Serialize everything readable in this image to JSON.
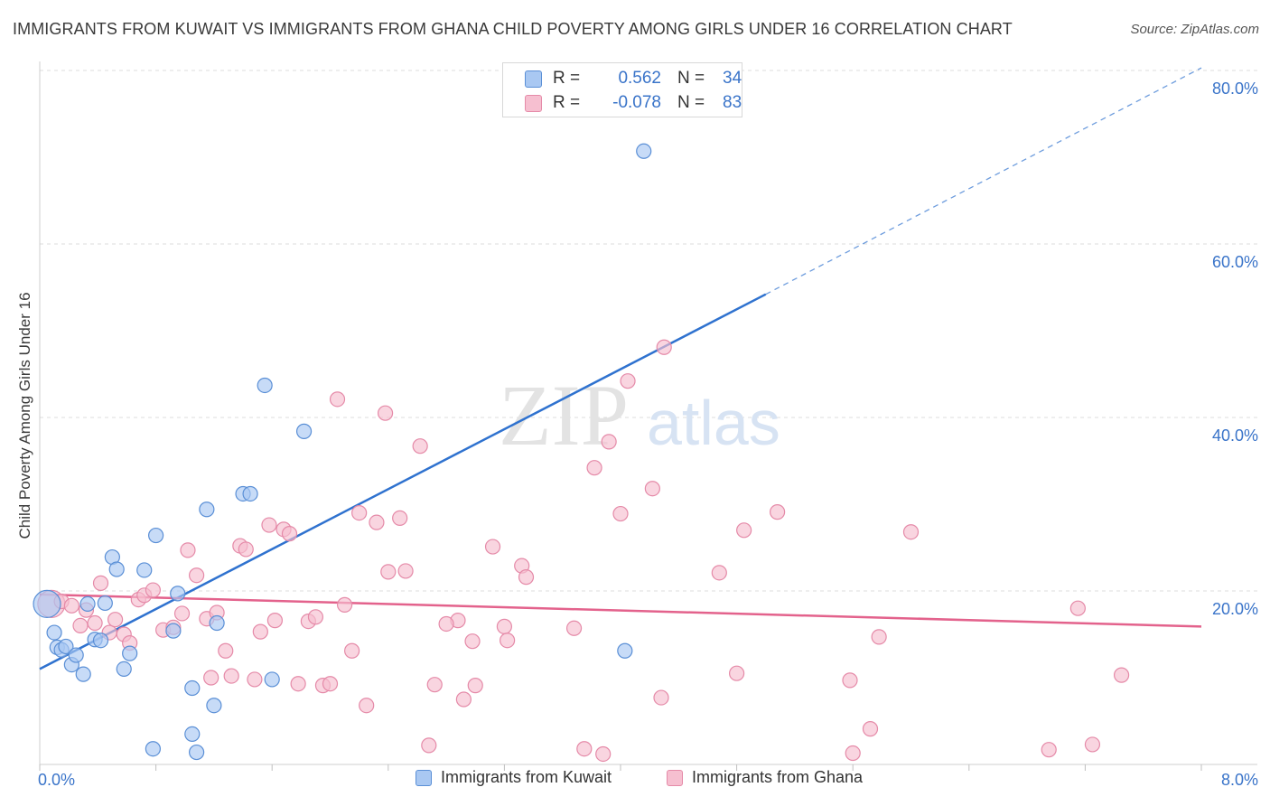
{
  "title": "IMMIGRANTS FROM KUWAIT VS IMMIGRANTS FROM GHANA CHILD POVERTY AMONG GIRLS UNDER 16 CORRELATION CHART",
  "source": "Source: ZipAtlas.com",
  "watermark": {
    "zip": "ZIP",
    "atlas": "atlas"
  },
  "legend": {
    "r_label": "R =",
    "n_label": "N =",
    "rows": [
      {
        "r": "0.562",
        "n": "34"
      },
      {
        "r": "-0.078",
        "n": "83"
      }
    ]
  },
  "colors": {
    "kuwait_fill": "#a9c8f2",
    "kuwait_stroke": "#5a8fd6",
    "kuwait_line": "#2f72cf",
    "ghana_fill": "#f6bfd0",
    "ghana_stroke": "#e58aa8",
    "ghana_line": "#e3628c",
    "tick_label": "#3a74c9",
    "grid": "#dddddd"
  },
  "chart_data": {
    "type": "scatter",
    "title": "IMMIGRANTS FROM KUWAIT VS IMMIGRANTS FROM GHANA CHILD POVERTY AMONG GIRLS UNDER 16 CORRELATION CHART",
    "xlabel": "",
    "ylabel": "Child Poverty Among Girls Under 16",
    "xlim": [
      0,
      8
    ],
    "ylim": [
      0,
      80
    ],
    "x_tick_labels": [
      "0.0%",
      "8.0%"
    ],
    "y_tick_values": [
      20,
      40,
      60,
      80
    ],
    "y_tick_labels": [
      "20.0%",
      "40.0%",
      "60.0%",
      "80.0%"
    ],
    "grid": true,
    "legend_position": "top-center",
    "series": [
      {
        "name": "Immigrants from Kuwait",
        "points": [
          [
            0.05,
            18.5
          ],
          [
            0.1,
            15.2
          ],
          [
            0.12,
            13.5
          ],
          [
            0.15,
            13.2
          ],
          [
            0.18,
            13.6
          ],
          [
            0.22,
            11.5
          ],
          [
            0.25,
            12.6
          ],
          [
            0.3,
            10.4
          ],
          [
            0.33,
            18.5
          ],
          [
            0.38,
            14.4
          ],
          [
            0.42,
            14.3
          ],
          [
            0.45,
            18.6
          ],
          [
            0.5,
            23.9
          ],
          [
            0.53,
            22.5
          ],
          [
            0.58,
            11.0
          ],
          [
            0.62,
            12.8
          ],
          [
            0.8,
            26.4
          ],
          [
            0.72,
            22.4
          ],
          [
            0.78,
            1.8
          ],
          [
            0.92,
            15.4
          ],
          [
            0.95,
            19.7
          ],
          [
            1.05,
            3.5
          ],
          [
            1.08,
            1.4
          ],
          [
            1.15,
            29.4
          ],
          [
            1.22,
            16.3
          ],
          [
            1.2,
            6.8
          ],
          [
            1.05,
            8.8
          ],
          [
            1.4,
            31.2
          ],
          [
            1.45,
            31.2
          ],
          [
            1.55,
            43.7
          ],
          [
            1.6,
            9.8
          ],
          [
            1.82,
            38.4
          ],
          [
            4.03,
            13.1
          ],
          [
            4.16,
            70.7
          ]
        ]
      },
      {
        "name": "Immigrants from Ghana",
        "points": [
          [
            0.08,
            18.5
          ],
          [
            0.15,
            18.8
          ],
          [
            0.22,
            18.3
          ],
          [
            0.28,
            16.0
          ],
          [
            0.32,
            17.8
          ],
          [
            0.38,
            16.3
          ],
          [
            0.42,
            20.9
          ],
          [
            0.48,
            15.2
          ],
          [
            0.52,
            16.7
          ],
          [
            0.58,
            15.0
          ],
          [
            0.62,
            14.0
          ],
          [
            0.68,
            19.0
          ],
          [
            0.72,
            19.5
          ],
          [
            0.78,
            20.1
          ],
          [
            0.85,
            15.5
          ],
          [
            0.92,
            15.8
          ],
          [
            0.98,
            17.4
          ],
          [
            1.02,
            24.7
          ],
          [
            1.08,
            21.8
          ],
          [
            1.15,
            16.8
          ],
          [
            1.18,
            10.0
          ],
          [
            1.22,
            17.5
          ],
          [
            1.28,
            13.1
          ],
          [
            1.32,
            10.2
          ],
          [
            1.38,
            25.2
          ],
          [
            1.42,
            24.8
          ],
          [
            1.48,
            9.8
          ],
          [
            1.52,
            15.3
          ],
          [
            1.58,
            27.6
          ],
          [
            1.62,
            16.6
          ],
          [
            1.68,
            27.1
          ],
          [
            1.72,
            26.6
          ],
          [
            1.78,
            9.3
          ],
          [
            1.85,
            16.5
          ],
          [
            1.9,
            17.0
          ],
          [
            1.95,
            9.1
          ],
          [
            2.0,
            9.3
          ],
          [
            2.05,
            42.1
          ],
          [
            2.1,
            18.4
          ],
          [
            2.15,
            13.1
          ],
          [
            2.2,
            29.0
          ],
          [
            2.25,
            6.8
          ],
          [
            2.32,
            27.9
          ],
          [
            2.38,
            40.5
          ],
          [
            2.4,
            22.2
          ],
          [
            2.48,
            28.4
          ],
          [
            2.52,
            22.3
          ],
          [
            2.62,
            36.7
          ],
          [
            2.68,
            2.2
          ],
          [
            2.72,
            9.2
          ],
          [
            2.88,
            16.6
          ],
          [
            2.92,
            7.5
          ],
          [
            2.98,
            14.2
          ],
          [
            3.12,
            25.1
          ],
          [
            3.2,
            15.9
          ],
          [
            3.22,
            14.3
          ],
          [
            3.32,
            22.9
          ],
          [
            3.35,
            21.6
          ],
          [
            3.68,
            15.7
          ],
          [
            3.75,
            1.8
          ],
          [
            3.82,
            34.2
          ],
          [
            3.88,
            1.2
          ],
          [
            3.92,
            37.2
          ],
          [
            4.0,
            28.9
          ],
          [
            4.05,
            44.2
          ],
          [
            4.22,
            31.8
          ],
          [
            4.28,
            7.7
          ],
          [
            4.3,
            48.1
          ],
          [
            4.68,
            22.1
          ],
          [
            4.8,
            10.5
          ],
          [
            4.85,
            27.0
          ],
          [
            5.08,
            29.1
          ],
          [
            5.58,
            9.7
          ],
          [
            5.6,
            1.3
          ],
          [
            5.72,
            4.1
          ],
          [
            5.78,
            14.7
          ],
          [
            6.0,
            26.8
          ],
          [
            6.95,
            1.7
          ],
          [
            7.15,
            18.0
          ],
          [
            7.25,
            2.3
          ],
          [
            7.45,
            10.3
          ],
          [
            2.8,
            16.2
          ],
          [
            3.0,
            9.1
          ]
        ]
      }
    ],
    "trend_lines": [
      {
        "series": "Immigrants from Kuwait",
        "solid": [
          [
            0,
            11.0
          ],
          [
            5.0,
            54.2
          ]
        ],
        "dashed": [
          [
            5.0,
            54.2
          ],
          [
            8.0,
            80.3
          ]
        ]
      },
      {
        "series": "Immigrants from Ghana",
        "solid": [
          [
            0,
            19.6
          ],
          [
            8.0,
            15.9
          ]
        ]
      }
    ]
  }
}
